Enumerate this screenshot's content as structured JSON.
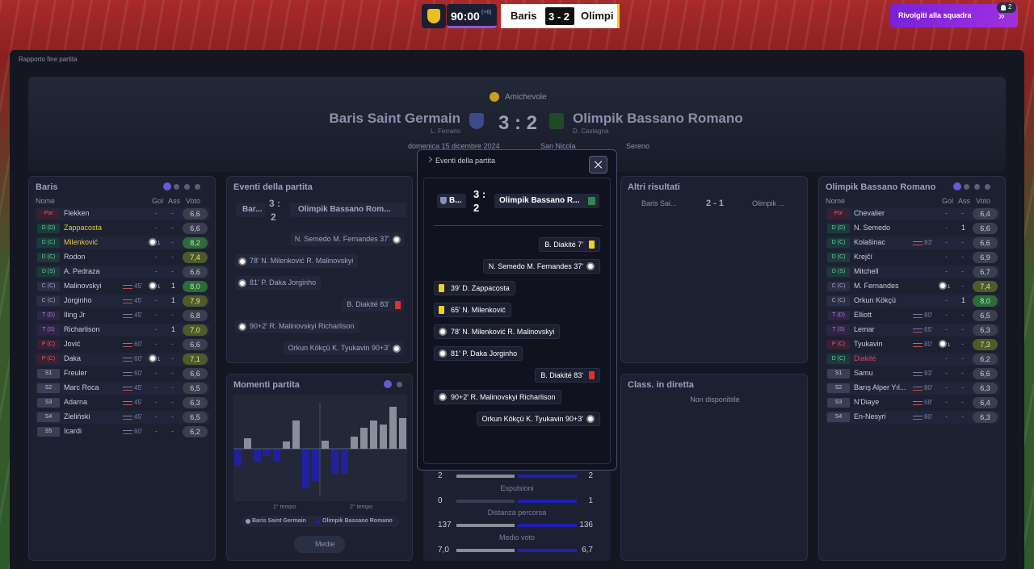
{
  "top_bar": {
    "time": "90:00",
    "added": "(+6)",
    "home": "Baris",
    "score": "3 - 2",
    "away": "Olimpi",
    "button": "Rivolgiti alla squadra",
    "badge": "2"
  },
  "page_title": "Rapporto fine partita",
  "header": {
    "competition": "Amichevole",
    "home_team": "Baris Saint Germain",
    "home_manager": "L. Ferrario",
    "score": "3 : 2",
    "away_team": "Olimpik Bassano Romano",
    "away_manager": "D. Castagna",
    "date": "domenica 15 dicembre 2024",
    "stadium": "San Nicola",
    "weather": "Sereno"
  },
  "home_panel": {
    "title": "Baris",
    "columns": [
      "Nome",
      "Gol",
      "Ass",
      "Voto"
    ],
    "players": [
      {
        "pos": "Por",
        "name": "Flekken",
        "gol": "-",
        "ass": "-",
        "voto": "6,6"
      },
      {
        "pos": "D (D)",
        "name": "Zappacosta",
        "gol": "-",
        "ass": "-",
        "voto": "6,6",
        "booking": "yellow"
      },
      {
        "pos": "D (C)",
        "name": "Milenković",
        "gol": "1",
        "ass": "-",
        "voto": "8,2",
        "booking": "yellow"
      },
      {
        "pos": "D (C)",
        "name": "Rodon",
        "gol": "-",
        "ass": "-",
        "voto": "7,4"
      },
      {
        "pos": "D (S)",
        "name": "A. Pedraza",
        "gol": "-",
        "ass": "-",
        "voto": "6,6"
      },
      {
        "pos": "C (C)",
        "name": "Malinovskyi",
        "sub": "45'",
        "gol": "1",
        "ass": "1",
        "voto": "8,0"
      },
      {
        "pos": "C (C)",
        "name": "Jorginho",
        "sub": "45'",
        "gol": "-",
        "ass": "1",
        "voto": "7,9"
      },
      {
        "pos": "T (D)",
        "name": "Iling Jr",
        "sub": "45'",
        "gol": "-",
        "ass": "-",
        "voto": "6,8"
      },
      {
        "pos": "T (S)",
        "name": "Richarlison",
        "gol": "-",
        "ass": "1",
        "voto": "7,0"
      },
      {
        "pos": "P (C)",
        "name": "Jović",
        "sub": "60'",
        "gol": "-",
        "ass": "-",
        "voto": "6,6"
      },
      {
        "pos": "P (C)",
        "name": "Daka",
        "sub": "60'",
        "gol": "1",
        "ass": "-",
        "voto": "7,1"
      },
      {
        "pos": "S1",
        "name": "Freuler",
        "sub": "60'",
        "gol": "-",
        "ass": "-",
        "voto": "6,6"
      },
      {
        "pos": "S2",
        "name": "Marc Roca",
        "sub": "45'",
        "gol": "-",
        "ass": "-",
        "voto": "6,5"
      },
      {
        "pos": "S3",
        "name": "Adarna",
        "sub": "45'",
        "gol": "-",
        "ass": "-",
        "voto": "6,3"
      },
      {
        "pos": "S4",
        "name": "Zieliński",
        "sub": "45'",
        "gol": "-",
        "ass": "-",
        "voto": "6,5"
      },
      {
        "pos": "S5",
        "name": "Icardi",
        "sub": "60'",
        "gol": "-",
        "ass": "-",
        "voto": "6,2"
      }
    ]
  },
  "away_panel": {
    "title": "Olimpik Bassano Romano",
    "columns": [
      "Nome",
      "Gol",
      "Ass",
      "Voto"
    ],
    "players": [
      {
        "pos": "Por",
        "name": "Chevalier",
        "gol": "-",
        "ass": "-",
        "voto": "6,4"
      },
      {
        "pos": "D (D)",
        "name": "N. Semedo",
        "gol": "-",
        "ass": "1",
        "voto": "6,6"
      },
      {
        "pos": "D (C)",
        "name": "Kolašinac",
        "sub": "83'",
        "gol": "-",
        "ass": "-",
        "voto": "6,6"
      },
      {
        "pos": "D (C)",
        "name": "Krejčí",
        "gol": "-",
        "ass": "-",
        "voto": "6,9"
      },
      {
        "pos": "D (S)",
        "name": "Mitchell",
        "gol": "-",
        "ass": "-",
        "voto": "6,7"
      },
      {
        "pos": "C (C)",
        "name": "M. Fernandes",
        "gol": "1",
        "ass": "-",
        "voto": "7,4"
      },
      {
        "pos": "C (C)",
        "name": "Orkun Kökçü",
        "gol": "-",
        "ass": "1",
        "voto": "8,0"
      },
      {
        "pos": "T (D)",
        "name": "Elliott",
        "sub": "80'",
        "gol": "-",
        "ass": "-",
        "voto": "6,5"
      },
      {
        "pos": "T (S)",
        "name": "Lemar",
        "sub": "65'",
        "gol": "-",
        "ass": "-",
        "voto": "6,3"
      },
      {
        "pos": "P (C)",
        "name": "Tyukavin",
        "sub": "80'",
        "gol": "1",
        "ass": "-",
        "voto": "7,3"
      },
      {
        "pos": "D (C)",
        "name": "Diakité",
        "gol": "-",
        "ass": "-",
        "voto": "6,2",
        "booking": "red"
      },
      {
        "pos": "S1",
        "name": "Samu",
        "sub": "83'",
        "gol": "-",
        "ass": "-",
        "voto": "6,6"
      },
      {
        "pos": "S2",
        "name": "Barış Alper Yıl...",
        "sub": "80'",
        "gol": "-",
        "ass": "-",
        "voto": "6,3"
      },
      {
        "pos": "S3",
        "name": "N'Diaye",
        "sub": "68'",
        "gol": "-",
        "ass": "-",
        "voto": "6,4"
      },
      {
        "pos": "S4",
        "name": "En-Nesyri",
        "sub": "80'",
        "gol": "-",
        "ass": "-",
        "voto": "6,3"
      }
    ]
  },
  "events_panel": {
    "title": "Eventi della partita",
    "home": "Bar...",
    "score_a": "3 :",
    "score_b": "2",
    "away": "Olimpik Bassano Rom..."
  },
  "modal": {
    "title": "Eventi della partita",
    "home": "B...",
    "score_a": "3 :",
    "score_b": "2",
    "away": "Olimpik Bassano R...",
    "events": [
      {
        "side": "away",
        "icon": "yellow",
        "text": "B. Diakité 7'"
      },
      {
        "side": "away",
        "icon": "goal",
        "text": "N. Semedo  M. Fernandes 37'"
      },
      {
        "side": "home",
        "icon": "yellow",
        "text": "39' D. Zappacosta"
      },
      {
        "side": "home",
        "icon": "yellow",
        "text": "65' N. Milenković"
      },
      {
        "side": "home",
        "icon": "goal",
        "text": "78' N. Milenković  R. Malinovskyi"
      },
      {
        "side": "home",
        "icon": "goal",
        "text": "81' P. Daka  Jorginho"
      },
      {
        "side": "away",
        "icon": "red",
        "text": "B. Diakité 83'"
      },
      {
        "side": "home",
        "icon": "goal",
        "text": "90+2' R. Malinovskyi  Richarlison"
      },
      {
        "side": "away",
        "icon": "goal",
        "text": "Orkun Kökçü  K. Tyukavin 90+3'"
      }
    ]
  },
  "moments": {
    "title": "Momenti partita",
    "home": [
      null,
      13,
      null,
      null,
      null,
      9,
      35,
      null,
      null,
      10,
      null,
      null,
      15,
      26,
      35,
      30,
      52,
      38
    ],
    "away": [
      20,
      null,
      15,
      8,
      14,
      null,
      null,
      48,
      40,
      null,
      30,
      30,
      null,
      null,
      null,
      null,
      null,
      null
    ],
    "first_half": "1° tempo",
    "second_half": "2° tempo",
    "legend": [
      "Baris Saint Germain",
      "Olimpik Bassano Romano"
    ],
    "button": "Medie"
  },
  "stats": [
    {
      "home": "2",
      "away": "2"
    },
    {
      "label": "Espulsioni",
      "home": "0",
      "away": "1"
    },
    {
      "label": "Distanza percorsa",
      "home": "137",
      "away": "136"
    },
    {
      "label": "Medio voto",
      "home": "7,0",
      "away": "6,7"
    }
  ],
  "other_results": {
    "title": "Altri risultati",
    "home": "Baris Sai...",
    "score": "2 - 1",
    "away": "Olimpik ..."
  },
  "live_table": {
    "title": "Class. in diretta",
    "text": "Non disponibile"
  }
}
